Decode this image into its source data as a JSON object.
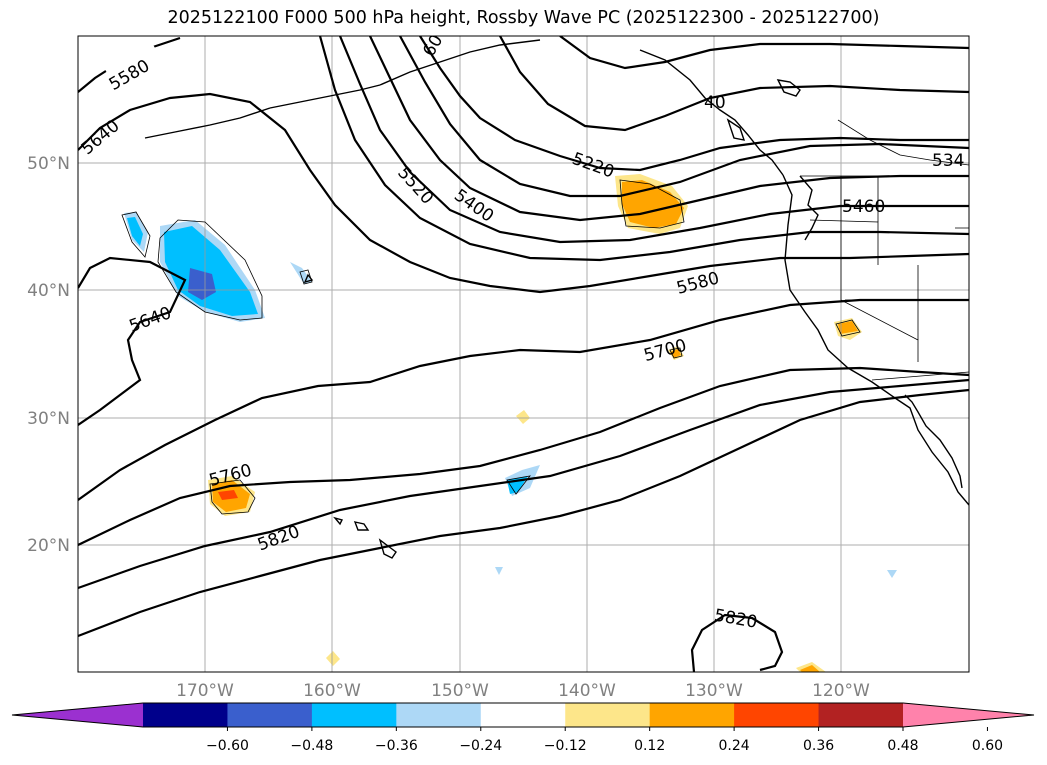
{
  "title": "2025122100 F000 500 hPa height, Rossby Wave PC (2025122300 - 2025122700)",
  "lat_labels": [
    "50°N",
    "40°N",
    "30°N",
    "20°N"
  ],
  "lon_labels": [
    "170°W",
    "160°W",
    "150°W",
    "140°W",
    "130°W",
    "120°W"
  ],
  "contour_labels": [
    "5580",
    "5640",
    "5520",
    "5400",
    "5220",
    "5460",
    "5580",
    "5700",
    "5640",
    "5760",
    "5820",
    "5820",
    "534",
    "40",
    "60"
  ],
  "colorbar": {
    "ticks": [
      "−0.60",
      "−0.48",
      "−0.36",
      "−0.24",
      "−0.12",
      "0.12",
      "0.24",
      "0.36",
      "0.48",
      "0.60"
    ],
    "colors": [
      "#9b30d0",
      "#00008b",
      "#3a5fcd",
      "#00bfff",
      "#add8f6",
      "#ffffff",
      "#fde68a",
      "#ffa500",
      "#ff4500",
      "#b22222",
      "#ff82ab"
    ]
  },
  "colors": {
    "contour": "#000000",
    "gridline": "#999999",
    "axis_label": "#808080"
  }
}
